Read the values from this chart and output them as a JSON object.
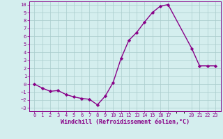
{
  "x": [
    0,
    1,
    2,
    3,
    4,
    5,
    6,
    7,
    8,
    9,
    10,
    11,
    12,
    13,
    14,
    15,
    16,
    17,
    20,
    21,
    22,
    23
  ],
  "y": [
    0.0,
    -0.5,
    -0.9,
    -0.8,
    -1.3,
    -1.6,
    -1.8,
    -1.9,
    -2.6,
    -1.5,
    0.2,
    3.2,
    5.5,
    6.5,
    7.8,
    9.0,
    9.8,
    10.0,
    4.5,
    2.3,
    2.3,
    2.3
  ],
  "line_color": "#880088",
  "marker": "D",
  "marker_size": 2.2,
  "bg_color": "#d4eeee",
  "grid_color": "#aacccc",
  "xlabel": "Windchill (Refroidissement éolien,°C)",
  "ylim": [
    -3.4,
    10.4
  ],
  "yticks": [
    -3,
    -2,
    -1,
    0,
    1,
    2,
    3,
    4,
    5,
    6,
    7,
    8,
    9,
    10
  ],
  "xticks": [
    0,
    1,
    2,
    3,
    4,
    5,
    6,
    7,
    8,
    9,
    10,
    11,
    12,
    13,
    14,
    15,
    16,
    17,
    20,
    21,
    22,
    23
  ],
  "tick_color": "#880088",
  "tick_fontsize": 5.0,
  "xlabel_fontsize": 6.0,
  "line_width": 1.0,
  "spine_color": "#880088"
}
